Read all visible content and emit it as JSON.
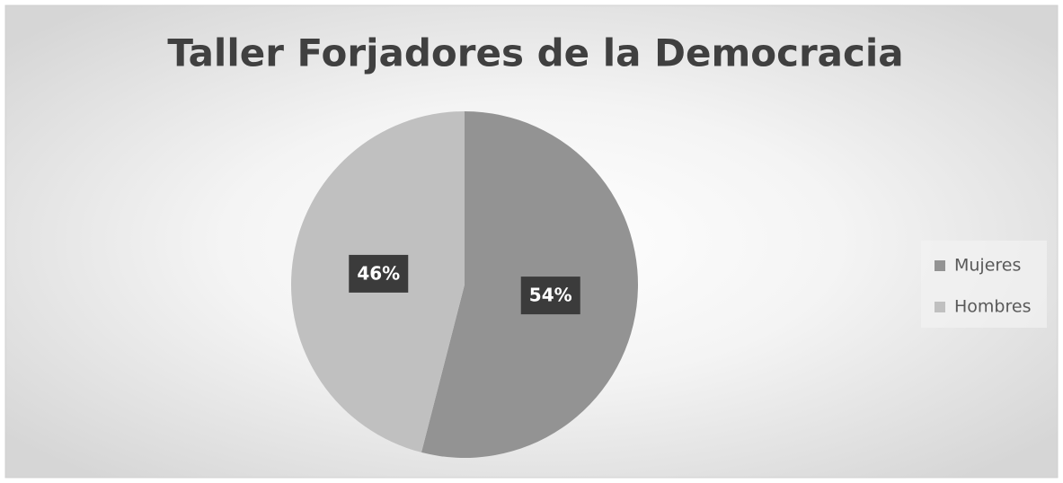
{
  "chart_data": {
    "type": "pie",
    "title": "Taller Forjadores de la Democracia",
    "categories": [
      "Mujeres",
      "Hombres"
    ],
    "values": [
      54,
      46
    ],
    "value_labels": [
      "54%",
      "46%"
    ],
    "colors": [
      "#939393",
      "#c0c0c0"
    ],
    "legend": "right"
  }
}
